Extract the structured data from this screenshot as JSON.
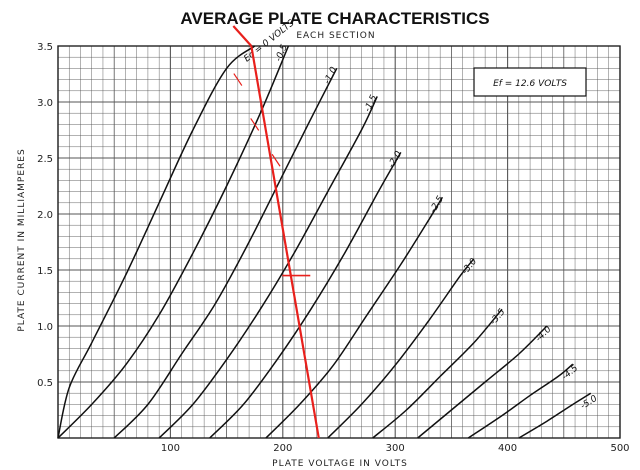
{
  "chart_data": {
    "type": "line",
    "title": "AVERAGE PLATE CHARACTERISTICS",
    "subtitle": "EACH SECTION",
    "xlabel": "PLATE VOLTAGE IN VOLTS",
    "ylabel": "PLATE CURRENT IN MILLIAMPERES",
    "xlim": [
      0,
      500
    ],
    "ylim": [
      0,
      3.5
    ],
    "xticks": [
      "100",
      "200",
      "300",
      "400",
      "500"
    ],
    "yticks": [
      "0.5",
      "1.0",
      "1.5",
      "2.0",
      "2.5",
      "3.0",
      "3.5"
    ],
    "annotation": "Ef = 12.6 VOLTS",
    "grid": true,
    "series": [
      {
        "name": "Ec = 0 VOLTS",
        "x": [
          0,
          10,
          30,
          60,
          90,
          120,
          150,
          175
        ],
        "y": [
          0,
          0.45,
          0.85,
          1.45,
          2.1,
          2.75,
          3.3,
          3.5
        ]
      },
      {
        "name": "-0.5",
        "x": [
          0,
          30,
          60,
          90,
          120,
          150,
          180,
          205
        ],
        "y": [
          0,
          0.3,
          0.65,
          1.1,
          1.65,
          2.25,
          2.9,
          3.5
        ]
      },
      {
        "name": "-1.0",
        "x": [
          50,
          80,
          110,
          140,
          170,
          200,
          225,
          248
        ],
        "y": [
          0,
          0.3,
          0.75,
          1.2,
          1.75,
          2.35,
          2.85,
          3.3
        ]
      },
      {
        "name": "-1.5",
        "x": [
          90,
          120,
          150,
          180,
          210,
          240,
          270,
          284
        ],
        "y": [
          0,
          0.3,
          0.7,
          1.15,
          1.65,
          2.2,
          2.75,
          3.05
        ]
      },
      {
        "name": "-2.0",
        "x": [
          135,
          165,
          195,
          225,
          255,
          285,
          305
        ],
        "y": [
          0,
          0.3,
          0.7,
          1.15,
          1.65,
          2.2,
          2.55
        ]
      },
      {
        "name": "-2.5",
        "x": [
          185,
          215,
          245,
          275,
          305,
          330,
          342
        ],
        "y": [
          0,
          0.3,
          0.65,
          1.1,
          1.55,
          1.95,
          2.15
        ]
      },
      {
        "name": "-3.0",
        "x": [
          240,
          270,
          300,
          330,
          358,
          370
        ],
        "y": [
          0,
          0.3,
          0.65,
          1.05,
          1.45,
          1.6
        ]
      },
      {
        "name": "-3.5",
        "x": [
          280,
          310,
          340,
          370,
          395
        ],
        "y": [
          0,
          0.25,
          0.55,
          0.85,
          1.15
        ]
      },
      {
        "name": "-4.0",
        "x": [
          320,
          350,
          380,
          410,
          435
        ],
        "y": [
          0,
          0.25,
          0.5,
          0.75,
          1.0
        ]
      },
      {
        "name": "-4.5",
        "x": [
          365,
          395,
          420,
          445,
          458
        ],
        "y": [
          0,
          0.2,
          0.38,
          0.55,
          0.66
        ]
      },
      {
        "name": "-5.0",
        "x": [
          410,
          435,
          455,
          474
        ],
        "y": [
          0,
          0.15,
          0.28,
          0.4
        ]
      }
    ],
    "load_line": {
      "color": "#e8201c",
      "x": [
        172,
        232
      ],
      "y": [
        3.5,
        0
      ]
    },
    "markers": [
      {
        "x": 212,
        "y": 1.45
      }
    ]
  }
}
